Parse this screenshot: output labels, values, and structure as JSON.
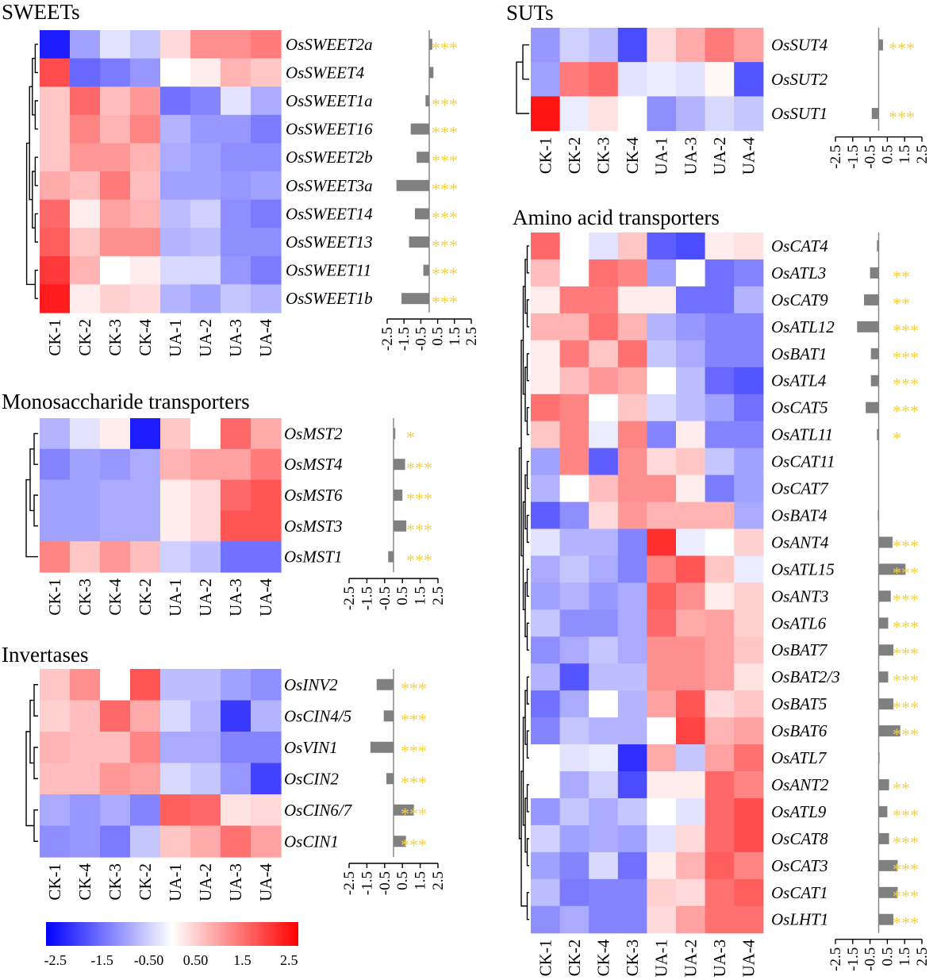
{
  "colors": {
    "low": "#0000FF",
    "mid": "#FFFFFF",
    "high": "#FF0000",
    "bar": "#808080",
    "star": "#F5D142",
    "axis": "#000000"
  },
  "chart_data": [
    {
      "type": "heatmap",
      "title": "SWEETs",
      "columns": [
        "CK-1",
        "CK-2",
        "CK-3",
        "CK-4",
        "UA-1",
        "UA-2",
        "UA-3",
        "UA-4"
      ],
      "rows": [
        "OsSWEET2a",
        "OsSWEET4",
        "OsSWEET1a",
        "OsSWEET16",
        "OsSWEET2b",
        "OsSWEET3a",
        "OsSWEET14",
        "OsSWEET13",
        "OsSWEET11",
        "OsSWEET1b"
      ],
      "values": [
        [
          -2.4,
          -1.0,
          -0.3,
          -0.6,
          0.4,
          1.2,
          1.2,
          1.4
        ],
        [
          1.9,
          -1.6,
          -1.4,
          -1.1,
          0.0,
          0.2,
          0.8,
          0.6
        ],
        [
          0.6,
          1.6,
          0.7,
          1.1,
          -1.5,
          -1.3,
          -0.3,
          -0.9
        ],
        [
          0.6,
          1.3,
          0.8,
          1.3,
          -0.8,
          -1.1,
          -1.1,
          -1.4
        ],
        [
          0.6,
          1.1,
          1.1,
          0.8,
          -0.9,
          -1.0,
          -1.2,
          -1.2
        ],
        [
          0.9,
          0.7,
          1.4,
          0.7,
          -1.0,
          -1.0,
          -1.1,
          -1.0
        ],
        [
          1.6,
          0.2,
          1.0,
          0.8,
          -0.7,
          -0.5,
          -1.2,
          -1.4
        ],
        [
          1.7,
          0.6,
          1.2,
          1.2,
          -0.8,
          -0.7,
          -1.2,
          -1.2
        ],
        [
          2.1,
          0.8,
          0.0,
          0.2,
          -0.4,
          -0.4,
          -1.1,
          -1.4
        ],
        [
          2.4,
          0.2,
          0.5,
          0.4,
          -0.8,
          -1.0,
          -0.6,
          -0.8
        ]
      ],
      "bars": [
        0.18,
        0.25,
        -0.22,
        -1.1,
        -0.75,
        -1.95,
        -0.85,
        -1.2,
        -0.35,
        -1.65
      ],
      "significance": [
        "***",
        "",
        "***",
        "***",
        "***",
        "***",
        "***",
        "***",
        "***",
        "***"
      ],
      "bar_axis": {
        "min": -2.5,
        "max": 2.5,
        "ticks": [
          "-2.5",
          "-1.5",
          "-0.5",
          "0.5",
          "1.5",
          "2.5"
        ]
      }
    },
    {
      "type": "heatmap",
      "title": "Monosaccharide transporters",
      "columns": [
        "CK-1",
        "CK-3",
        "CK-4",
        "CK-2",
        "UA-1",
        "UA-2",
        "UA-3",
        "UA-4"
      ],
      "rows": [
        "OsMST2",
        "OsMST4",
        "OsMST6",
        "OsMST3",
        "OsMST1"
      ],
      "values": [
        [
          -0.8,
          -0.3,
          0.2,
          -2.4,
          0.6,
          0.0,
          1.6,
          0.9
        ],
        [
          -1.3,
          -1.0,
          -1.1,
          -0.9,
          0.8,
          1.0,
          1.0,
          1.4
        ],
        [
          -1.0,
          -1.0,
          -0.9,
          -0.9,
          0.2,
          0.4,
          1.6,
          1.8
        ],
        [
          -1.0,
          -1.0,
          -0.9,
          -0.9,
          0.2,
          0.4,
          1.8,
          1.8
        ],
        [
          1.3,
          0.6,
          1.1,
          0.7,
          -0.5,
          -0.7,
          -1.5,
          -1.5
        ]
      ],
      "bars": [
        0.1,
        0.65,
        0.5,
        0.72,
        -0.3
      ],
      "significance": [
        "*",
        "***",
        "***",
        "***",
        "***"
      ],
      "bar_axis": {
        "min": -2.5,
        "max": 2.5,
        "ticks": [
          "-2.5",
          "-1.5",
          "-0.5",
          "0.5",
          "1.5",
          "2.5"
        ]
      }
    },
    {
      "type": "heatmap",
      "title": "Invertases",
      "columns": [
        "CK-1",
        "CK-4",
        "CK-3",
        "CK-2",
        "UA-1",
        "UA-2",
        "UA-3",
        "UA-4"
      ],
      "rows": [
        "OsINV2",
        "OsCIN4/5",
        "OsVIN1",
        "OsCIN2",
        "OsCIN6/7",
        "OsCIN1"
      ],
      "values": [
        [
          0.6,
          1.2,
          0.0,
          1.8,
          -0.7,
          -0.7,
          -1.0,
          -1.2
        ],
        [
          0.5,
          0.7,
          1.6,
          0.9,
          -0.4,
          -0.8,
          -2.1,
          -0.8
        ],
        [
          0.8,
          0.7,
          0.7,
          1.3,
          -0.9,
          -0.9,
          -1.3,
          -1.3
        ],
        [
          0.7,
          0.7,
          1.1,
          1.0,
          -0.4,
          -0.6,
          -1.1,
          -2.0
        ],
        [
          -0.9,
          -1.1,
          -0.9,
          -1.3,
          1.7,
          1.6,
          0.3,
          0.4
        ],
        [
          -1.2,
          -1.1,
          -1.4,
          -0.6,
          0.6,
          0.9,
          1.5,
          1.0
        ]
      ],
      "bars": [
        -0.95,
        -0.55,
        -1.3,
        -0.4,
        1.15,
        0.7
      ],
      "significance": [
        "***",
        "***",
        "***",
        "***",
        "***",
        "***"
      ],
      "bar_axis": {
        "min": -2.5,
        "max": 2.5,
        "ticks": [
          "-2.5",
          "-1.5",
          "-0.5",
          "0.5",
          "1.5",
          "2.5"
        ]
      }
    },
    {
      "type": "heatmap",
      "title": "SUTs",
      "columns": [
        "CK-1",
        "CK-2",
        "CK-3",
        "CK-4",
        "UA-1",
        "UA-3",
        "UA-2",
        "UA-4"
      ],
      "rows": [
        "OsSUT4",
        "OsSUT2",
        "OsSUT1"
      ],
      "values": [
        [
          -1.1,
          -0.5,
          -0.7,
          -1.9,
          0.4,
          0.9,
          1.4,
          1.0
        ],
        [
          -1.0,
          1.4,
          1.6,
          -0.3,
          -0.2,
          -0.3,
          0.1,
          -1.8
        ],
        [
          2.5,
          -0.2,
          0.3,
          0.0,
          -1.2,
          -0.8,
          -0.4,
          -0.6
        ]
      ],
      "bars": [
        0.25,
        0.0,
        -0.4
      ],
      "significance": [
        "***",
        "",
        "***"
      ],
      "bar_axis": {
        "min": -2.5,
        "max": 2.5,
        "ticks": [
          "-2.5",
          "-1.5",
          "-0.5",
          "0.5",
          "1.5",
          "2.5"
        ]
      }
    },
    {
      "type": "heatmap",
      "title": "Amino acid transporters",
      "columns": [
        "CK-1",
        "CK-2",
        "CK-4",
        "CK-3",
        "UA-1",
        "UA-2",
        "UA-3",
        "UA-4"
      ],
      "rows": [
        "OsCAT4",
        "OsATL3",
        "OsCAT9",
        "OsATL12",
        "OsBAT1",
        "OsATL4",
        "OsCAT5",
        "OsATL11",
        "OsCAT11",
        "OsCAT7",
        "OsBAT4",
        "OsANT4",
        "OsATL15",
        "OsANT3",
        "OsATL6",
        "OsBAT7",
        "OsBAT2/3",
        "OsBAT5",
        "OsBAT6",
        "OsATL7",
        "OsANT2",
        "OsATL9",
        "OsCAT8",
        "OsCAT3",
        "OsCAT1",
        "OsLHT1"
      ],
      "values": [
        [
          1.6,
          0.0,
          -0.3,
          0.6,
          -1.7,
          -1.9,
          0.2,
          0.3
        ],
        [
          0.7,
          0.0,
          1.5,
          1.3,
          -1.0,
          0.0,
          -1.5,
          -1.3
        ],
        [
          0.2,
          1.4,
          1.4,
          0.2,
          0.2,
          -1.5,
          -1.5,
          -0.8
        ],
        [
          0.8,
          0.8,
          1.5,
          0.8,
          -0.8,
          -1.1,
          -1.3,
          -1.3
        ],
        [
          0.2,
          1.4,
          0.6,
          1.5,
          -0.6,
          -0.9,
          -1.3,
          -1.3
        ],
        [
          0.2,
          0.7,
          1.1,
          0.9,
          0.0,
          -0.7,
          -1.6,
          -1.8
        ],
        [
          1.5,
          1.3,
          0.0,
          0.6,
          -0.4,
          -0.7,
          -1.0,
          -1.5
        ],
        [
          0.6,
          1.3,
          -0.2,
          1.3,
          -1.3,
          0.2,
          -1.3,
          -1.3
        ],
        [
          -1.0,
          1.3,
          -1.7,
          1.2,
          0.4,
          0.6,
          -0.6,
          -1.0
        ],
        [
          -0.8,
          0.0,
          0.7,
          1.2,
          1.2,
          0.2,
          -1.4,
          -1.0
        ],
        [
          -1.7,
          -1.2,
          0.4,
          1.1,
          0.8,
          0.8,
          0.8,
          -0.9
        ],
        [
          -0.3,
          -0.8,
          -0.8,
          -1.3,
          2.2,
          -0.2,
          0.0,
          0.5
        ],
        [
          -0.9,
          -0.6,
          -0.9,
          -1.3,
          1.3,
          1.8,
          0.6,
          -0.2
        ],
        [
          -1.0,
          -0.8,
          -1.1,
          -0.9,
          1.7,
          1.2,
          0.2,
          0.5
        ],
        [
          -0.6,
          -1.2,
          -1.2,
          -0.9,
          1.6,
          0.9,
          1.0,
          0.5
        ],
        [
          -1.2,
          -0.9,
          -0.6,
          -0.9,
          1.2,
          1.2,
          1.0,
          0.6
        ],
        [
          -0.8,
          -1.8,
          -0.7,
          -0.7,
          1.2,
          1.2,
          1.0,
          0.3
        ],
        [
          -1.5,
          -0.9,
          0.0,
          -0.8,
          1.0,
          1.8,
          0.4,
          0.6
        ],
        [
          -1.3,
          -0.6,
          -0.8,
          -0.8,
          0.0,
          2.0,
          0.8,
          1.0
        ],
        [
          0.0,
          -0.3,
          -0.2,
          -2.2,
          0.9,
          -0.6,
          1.0,
          1.5
        ],
        [
          0.0,
          -0.9,
          -0.5,
          -1.9,
          0.2,
          0.2,
          1.6,
          1.3
        ],
        [
          -1.1,
          -0.6,
          -0.9,
          -0.6,
          0.0,
          -0.3,
          1.6,
          1.9
        ],
        [
          -0.5,
          -1.0,
          -0.9,
          -1.0,
          -0.3,
          0.4,
          1.6,
          1.9
        ],
        [
          -1.0,
          -1.3,
          -0.4,
          -1.5,
          0.2,
          0.8,
          1.7,
          1.3
        ],
        [
          -0.7,
          -1.4,
          -1.3,
          -1.3,
          0.5,
          0.4,
          1.5,
          1.7
        ],
        [
          -1.2,
          -0.9,
          -1.3,
          -1.3,
          0.4,
          1.0,
          1.5,
          1.5
        ]
      ],
      "bars": [
        -0.1,
        -0.5,
        -0.85,
        -1.25,
        -0.45,
        -0.45,
        -0.75,
        -0.1,
        0.0,
        0.0,
        -0.05,
        0.8,
        1.55,
        0.7,
        0.55,
        0.85,
        0.55,
        0.85,
        1.25,
        0.05,
        0.6,
        0.5,
        0.6,
        1.1,
        1.1,
        0.85
      ],
      "significance": [
        "",
        "**",
        "**",
        "***",
        "***",
        "***",
        "***",
        "*",
        "",
        "",
        "",
        "***",
        "***",
        "***",
        "***",
        "***",
        "***",
        "***",
        "***",
        "",
        "**",
        "***",
        "***",
        "***",
        "***",
        "***"
      ],
      "bar_axis": {
        "min": -2.5,
        "max": 2.5,
        "ticks": [
          "-2.5",
          "-1.5",
          "-0.5",
          "0.5",
          "1.5",
          "2.5"
        ]
      }
    }
  ],
  "color_scale": {
    "min": -2.7,
    "max": 2.7,
    "ticks": [
      {
        "value": -2.5,
        "label": "-2.5"
      },
      {
        "value": -1.5,
        "label": "-1.5"
      },
      {
        "value": -0.5,
        "label": "-0.50"
      },
      {
        "value": 0.5,
        "label": "0.50"
      },
      {
        "value": 1.5,
        "label": "1.5"
      },
      {
        "value": 2.5,
        "label": "2.5"
      }
    ]
  }
}
